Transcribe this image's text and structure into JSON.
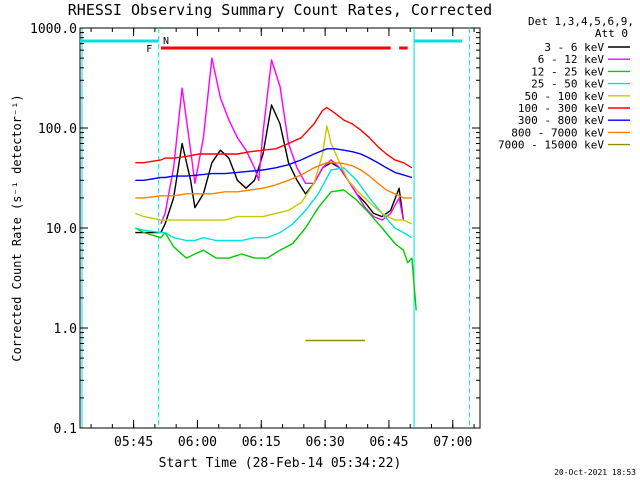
{
  "chart_data": {
    "type": "line",
    "title": "RHESSI Observing Summary Count Rates, Corrected",
    "xlabel": "Start Time (28-Feb-14 05:34:22)",
    "ylabel": "Corrected Count Rate (s⁻¹ detector⁻¹)",
    "yscale": "log",
    "ylim": [
      0.1,
      1000
    ],
    "xlim": [
      -2,
      92
    ],
    "x_units": "minutes after 05:34:22",
    "x_tick_labels": [
      "05:45",
      "06:00",
      "06:15",
      "06:30",
      "06:45",
      "07:00"
    ],
    "x_tick_minutes": [
      10.6,
      25.6,
      40.6,
      55.6,
      70.6,
      85.6
    ],
    "y_tick_labels": [
      "0.1",
      "1.0",
      "10.0",
      "100.0",
      "1000.0"
    ],
    "y_tick_values": [
      0.1,
      1,
      10,
      100,
      1000
    ],
    "legend_header": [
      "Det 1,3,4,5,6,9,",
      "Att 0"
    ],
    "legend_position": "right",
    "footer": "20-Oct-2021 18:53",
    "flags": [
      {
        "label": "N",
        "color": "#00e0e0",
        "note": "night intervals"
      },
      {
        "label": "F",
        "color": "#ff0000",
        "note": "flare flag"
      }
    ],
    "series": [
      {
        "name": "3 - 6 keV",
        "color": "#000000",
        "x": [
          11,
          17,
          18,
          20,
          22,
          24,
          25,
          27,
          29,
          31,
          33,
          35,
          37,
          39,
          40,
          41,
          43,
          45,
          47,
          49,
          51,
          53,
          55,
          57,
          59,
          61,
          63,
          65,
          67,
          69,
          71,
          73,
          74
        ],
        "y": [
          9,
          9,
          11,
          20,
          70,
          30,
          16,
          22,
          45,
          60,
          50,
          30,
          25,
          30,
          40,
          55,
          170,
          110,
          45,
          30,
          22,
          28,
          40,
          45,
          40,
          30,
          22,
          18,
          14,
          13,
          15,
          25,
          12
        ]
      },
      {
        "name": "6 - 12 keV",
        "color": "#ff00ff",
        "x": [
          17,
          18,
          20,
          22,
          24,
          25,
          27,
          29,
          31,
          33,
          35,
          37,
          39,
          40,
          41,
          43,
          45,
          47,
          49,
          51,
          53,
          55,
          57,
          59,
          61,
          63,
          65,
          67,
          69,
          71,
          73,
          74
        ],
        "y": [
          11,
          14,
          40,
          250,
          60,
          28,
          80,
          500,
          200,
          120,
          80,
          60,
          40,
          30,
          90,
          480,
          260,
          70,
          40,
          28,
          28,
          40,
          48,
          40,
          30,
          22,
          16,
          13,
          12,
          14,
          20,
          12
        ]
      },
      {
        "name": "12 - 25 keV",
        "color": "#00cc00",
        "x": [
          11,
          13,
          17,
          18,
          20,
          23,
          25,
          27,
          30,
          33,
          36,
          39,
          42,
          45,
          48,
          51,
          54,
          57,
          60,
          63,
          66,
          69,
          72,
          74,
          75,
          76,
          77
        ],
        "y": [
          10,
          9,
          8,
          9,
          6.5,
          5,
          5.5,
          6,
          5,
          5,
          5.5,
          5,
          5,
          6,
          7,
          10,
          16,
          23,
          24,
          19,
          14,
          10,
          7,
          6,
          4.5,
          5,
          1.5
        ]
      },
      {
        "name": "25 - 50 keV",
        "color": "#00e0e0",
        "x": [
          11,
          13,
          17,
          18,
          20,
          23,
          25,
          27,
          30,
          33,
          36,
          39,
          42,
          45,
          48,
          51,
          54,
          57,
          60,
          63,
          66,
          69,
          72,
          74,
          76
        ],
        "y": [
          10,
          9.5,
          9,
          9,
          8,
          7.5,
          7.5,
          8,
          7.5,
          7.5,
          7.5,
          8,
          8,
          9,
          11,
          15,
          22,
          38,
          40,
          30,
          20,
          14,
          10,
          9,
          8
        ]
      },
      {
        "name": "50 - 100 keV",
        "color": "#c8c800",
        "x": [
          11,
          13,
          17,
          18,
          20,
          23,
          26,
          29,
          32,
          35,
          38,
          41,
          44,
          47,
          50,
          53,
          55,
          56,
          57,
          59,
          61,
          63,
          66,
          69,
          72,
          74,
          76
        ],
        "y": [
          14,
          13,
          12,
          12,
          12,
          12,
          12,
          12,
          12,
          13,
          13,
          13,
          14,
          15,
          18,
          28,
          55,
          105,
          70,
          45,
          30,
          24,
          18,
          14,
          12,
          12,
          11
        ]
      },
      {
        "name": "100 - 300 keV",
        "color": "#ff0000",
        "x": [
          11,
          13,
          17,
          18,
          20,
          23,
          26,
          29,
          32,
          35,
          38,
          41,
          44,
          47,
          50,
          53,
          55,
          56,
          58,
          60,
          62,
          64,
          66,
          68,
          70,
          72,
          74,
          76
        ],
        "y": [
          45,
          45,
          48,
          50,
          50,
          52,
          55,
          55,
          55,
          55,
          58,
          60,
          62,
          70,
          80,
          110,
          150,
          160,
          140,
          120,
          110,
          95,
          80,
          65,
          55,
          48,
          45,
          40
        ]
      },
      {
        "name": "300 - 800 keV",
        "color": "#0000ff",
        "x": [
          11,
          13,
          17,
          18,
          20,
          23,
          26,
          29,
          32,
          35,
          38,
          41,
          44,
          47,
          50,
          53,
          56,
          58,
          60,
          62,
          64,
          66,
          68,
          70,
          72,
          74,
          76
        ],
        "y": [
          30,
          30,
          32,
          32,
          33,
          33,
          34,
          35,
          35,
          36,
          37,
          38,
          40,
          43,
          48,
          55,
          62,
          62,
          60,
          58,
          55,
          50,
          45,
          40,
          36,
          34,
          32
        ]
      },
      {
        "name": "800 - 7000 keV",
        "color": "#ff8000",
        "x": [
          11,
          13,
          17,
          18,
          20,
          23,
          26,
          29,
          32,
          35,
          38,
          41,
          44,
          47,
          50,
          53,
          56,
          58,
          60,
          62,
          64,
          66,
          68,
          70,
          72,
          74,
          76
        ],
        "y": [
          20,
          20,
          21,
          21,
          21,
          22,
          22,
          22,
          23,
          23,
          24,
          25,
          27,
          30,
          34,
          40,
          45,
          45,
          44,
          42,
          38,
          33,
          28,
          24,
          22,
          20,
          20
        ]
      },
      {
        "name": "7000 - 15000 keV",
        "color": "#909000",
        "x": [
          51,
          53,
          55,
          57,
          59,
          61,
          63,
          65
        ],
        "y": [
          0.75,
          0.75,
          0.75,
          0.75,
          0.75,
          0.75,
          0.75,
          0.75
        ]
      }
    ]
  }
}
